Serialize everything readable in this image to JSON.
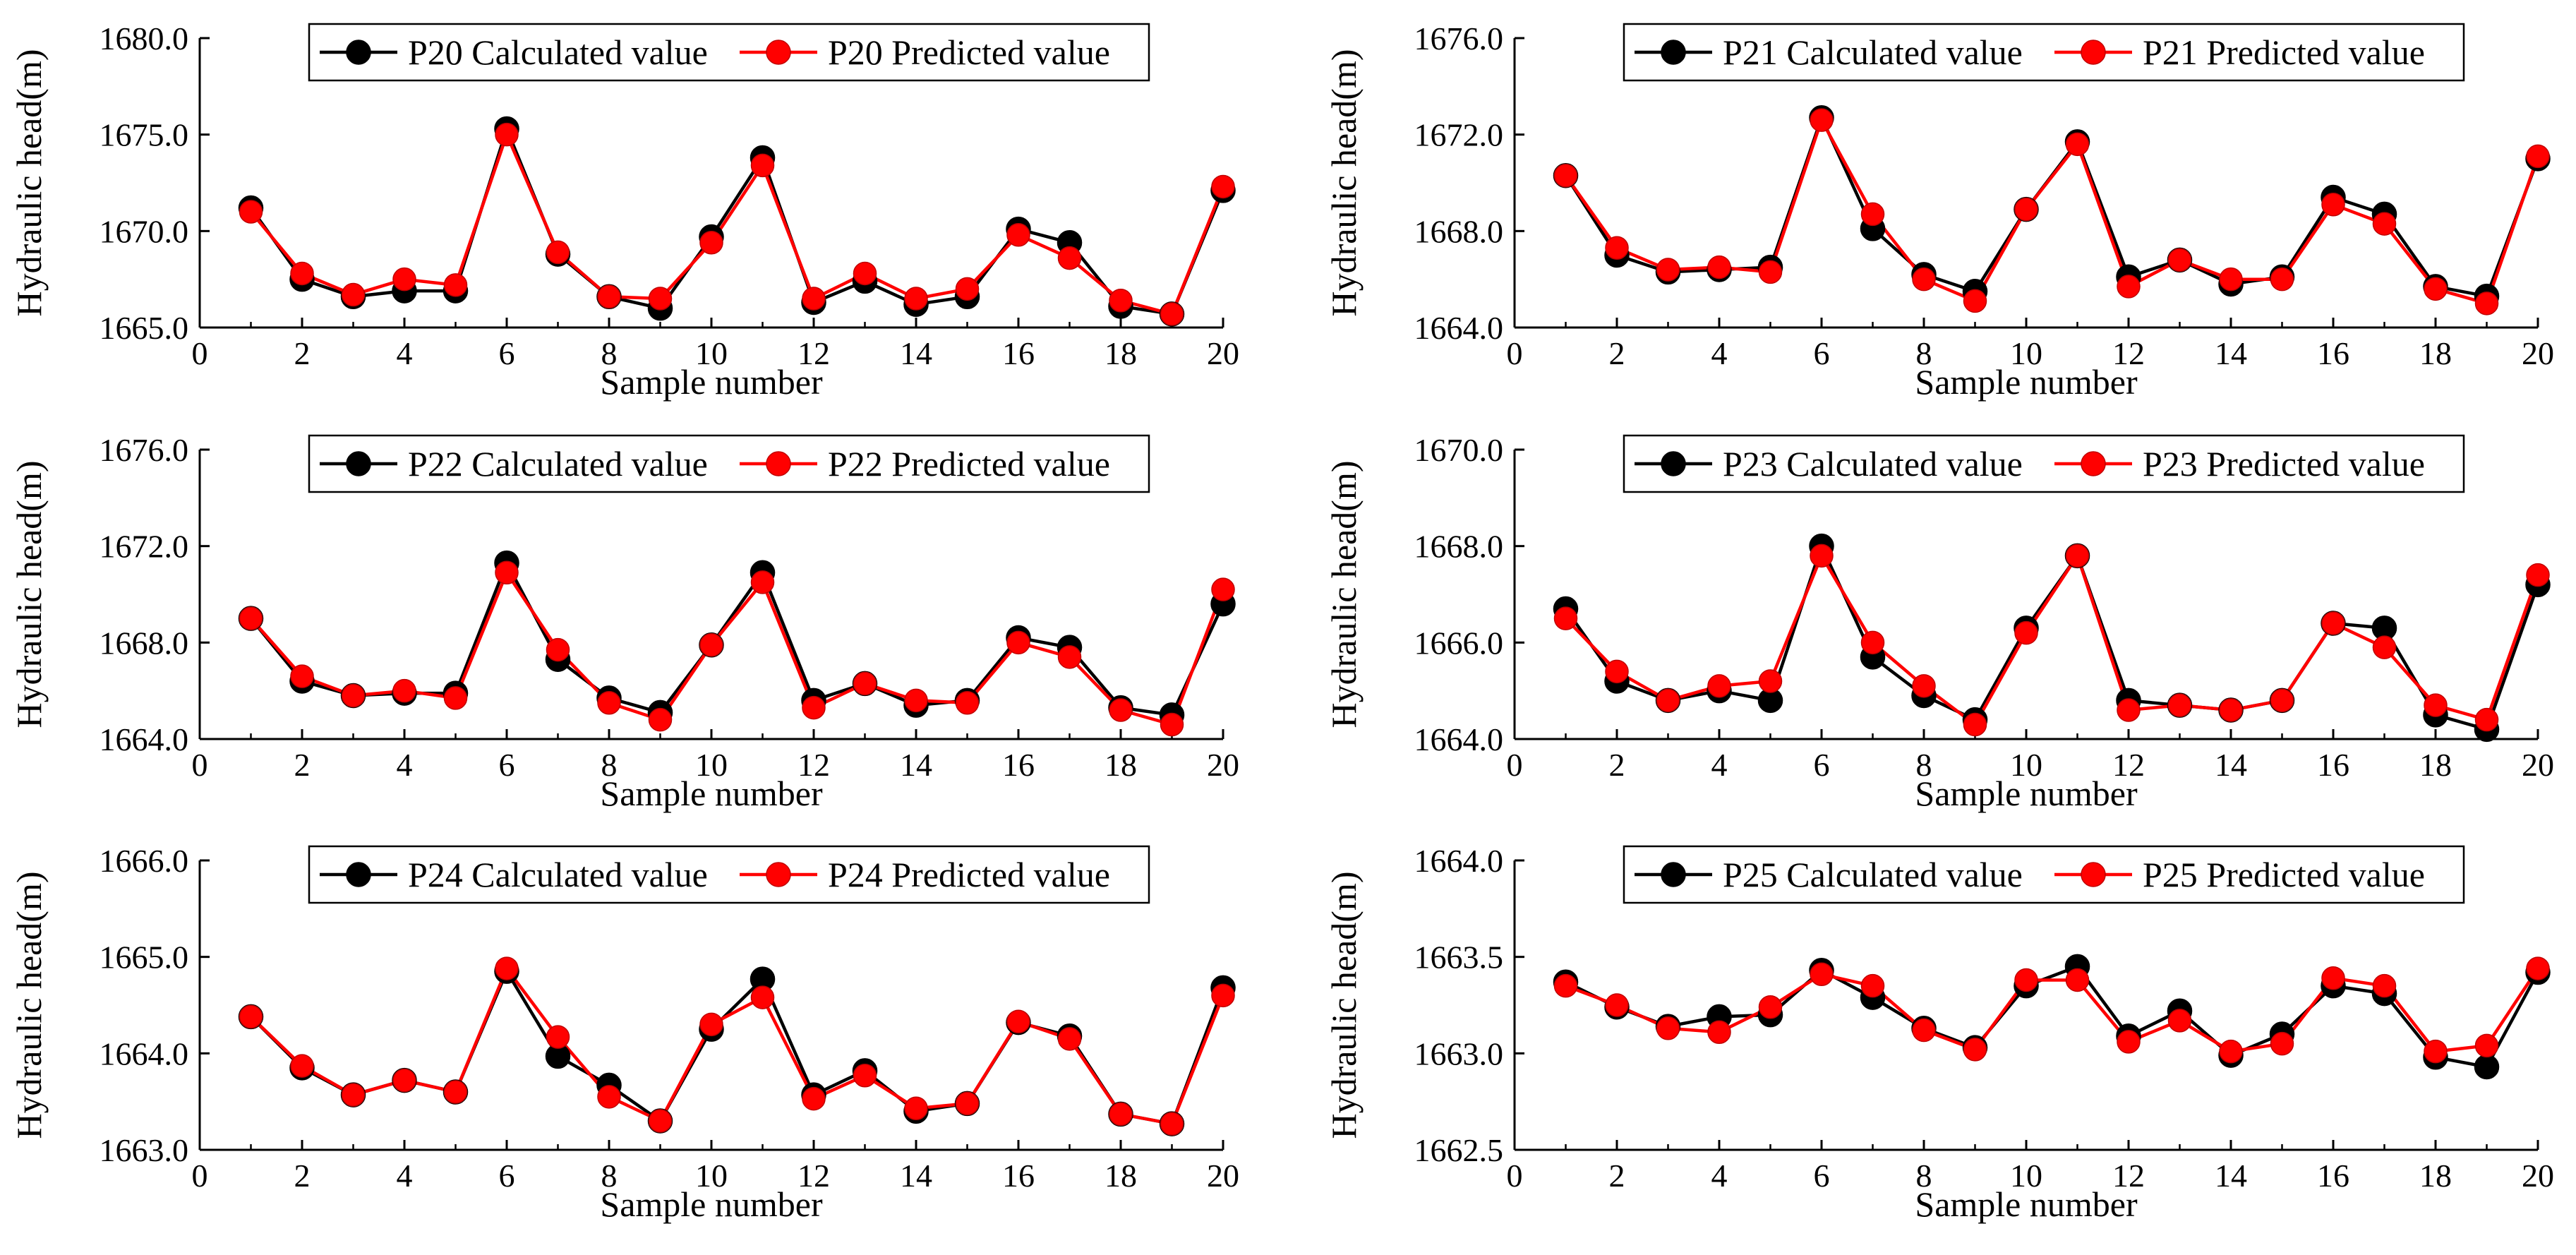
{
  "chart_data": [
    {
      "type": "line",
      "xlabel": "Sample number",
      "ylabel": "Hydraulic head(m)",
      "xlim": [
        0,
        20
      ],
      "ylim": [
        1665.0,
        1680.0
      ],
      "yticks": [
        "1665.0",
        "1670.0",
        "1675.0",
        "1680.0"
      ],
      "xticks": [
        "0",
        "2",
        "4",
        "6",
        "8",
        "10",
        "12",
        "14",
        "16",
        "18",
        "20"
      ],
      "x": [
        1,
        2,
        3,
        4,
        5,
        6,
        7,
        8,
        9,
        10,
        11,
        12,
        13,
        14,
        15,
        16,
        17,
        18,
        19,
        20
      ],
      "series": [
        {
          "name": "P20 Calculated value",
          "color": "#000000",
          "values": [
            1671.2,
            1667.5,
            1666.6,
            1666.9,
            1666.9,
            1675.3,
            1668.8,
            1666.6,
            1666.0,
            1669.7,
            1673.8,
            1666.3,
            1667.4,
            1666.2,
            1666.6,
            1670.1,
            1669.4,
            1666.1,
            1665.7,
            1672.1
          ]
        },
        {
          "name": "P20 Predicted value",
          "color": "#ff0000",
          "values": [
            1671.0,
            1667.8,
            1666.7,
            1667.5,
            1667.2,
            1675.0,
            1668.9,
            1666.6,
            1666.5,
            1669.4,
            1673.4,
            1666.5,
            1667.8,
            1666.5,
            1667.0,
            1669.8,
            1668.6,
            1666.4,
            1665.7,
            1672.3
          ]
        }
      ]
    },
    {
      "type": "line",
      "xlabel": "Sample number",
      "ylabel": "Hydraulic head(m)",
      "xlim": [
        0,
        20
      ],
      "ylim": [
        1664.0,
        1676.0
      ],
      "yticks": [
        "1664.0",
        "1668.0",
        "1672.0",
        "1676.0"
      ],
      "xticks": [
        "0",
        "2",
        "4",
        "6",
        "8",
        "10",
        "12",
        "14",
        "16",
        "18",
        "20"
      ],
      "x": [
        1,
        2,
        3,
        4,
        5,
        6,
        7,
        8,
        9,
        10,
        11,
        12,
        13,
        14,
        15,
        16,
        17,
        18,
        19,
        20
      ],
      "series": [
        {
          "name": "P21 Calculated value",
          "color": "#000000",
          "values": [
            1670.3,
            1667.0,
            1666.3,
            1666.4,
            1666.5,
            1672.7,
            1668.1,
            1666.2,
            1665.5,
            1668.9,
            1671.7,
            1666.1,
            1666.8,
            1665.8,
            1666.1,
            1669.4,
            1668.7,
            1665.7,
            1665.3,
            1671.0
          ]
        },
        {
          "name": "P21 Predicted value",
          "color": "#ff0000",
          "values": [
            1670.3,
            1667.3,
            1666.4,
            1666.5,
            1666.3,
            1672.6,
            1668.7,
            1666.0,
            1665.1,
            1668.9,
            1671.6,
            1665.7,
            1666.8,
            1666.0,
            1666.0,
            1669.1,
            1668.3,
            1665.6,
            1665.0,
            1671.1
          ]
        }
      ]
    },
    {
      "type": "line",
      "xlabel": "Sample number",
      "ylabel": "Hydraulic head(m)",
      "xlim": [
        0,
        20
      ],
      "ylim": [
        1664.0,
        1676.0
      ],
      "yticks": [
        "1664.0",
        "1668.0",
        "1672.0",
        "1676.0"
      ],
      "xticks": [
        "0",
        "2",
        "4",
        "6",
        "8",
        "10",
        "12",
        "14",
        "16",
        "18",
        "20"
      ],
      "x": [
        1,
        2,
        3,
        4,
        5,
        6,
        7,
        8,
        9,
        10,
        11,
        12,
        13,
        14,
        15,
        16,
        17,
        18,
        19,
        20
      ],
      "series": [
        {
          "name": "P22 Calculated value",
          "color": "#000000",
          "values": [
            1669.0,
            1666.4,
            1665.8,
            1665.9,
            1665.9,
            1671.3,
            1667.3,
            1665.7,
            1665.1,
            1667.9,
            1670.9,
            1665.6,
            1666.3,
            1665.4,
            1665.6,
            1668.2,
            1667.8,
            1665.3,
            1665.0,
            1669.6
          ]
        },
        {
          "name": "P22 Predicted value",
          "color": "#ff0000",
          "values": [
            1669.0,
            1666.6,
            1665.8,
            1666.0,
            1665.7,
            1670.9,
            1667.7,
            1665.5,
            1664.8,
            1667.9,
            1670.5,
            1665.3,
            1666.3,
            1665.6,
            1665.5,
            1668.0,
            1667.4,
            1665.2,
            1664.6,
            1670.2
          ]
        }
      ]
    },
    {
      "type": "line",
      "xlabel": "Sample number",
      "ylabel": "Hydraulic head(m)",
      "xlim": [
        0,
        20
      ],
      "ylim": [
        1664.0,
        1670.0
      ],
      "yticks": [
        "1664.0",
        "1666.0",
        "1668.0",
        "1670.0"
      ],
      "xticks": [
        "0",
        "2",
        "4",
        "6",
        "8",
        "10",
        "12",
        "14",
        "16",
        "18",
        "20"
      ],
      "x": [
        1,
        2,
        3,
        4,
        5,
        6,
        7,
        8,
        9,
        10,
        11,
        12,
        13,
        14,
        15,
        16,
        17,
        18,
        19,
        20
      ],
      "series": [
        {
          "name": "P23 Calculated value",
          "color": "#000000",
          "values": [
            1666.7,
            1665.2,
            1664.8,
            1665.0,
            1664.8,
            1668.0,
            1665.7,
            1664.9,
            1664.4,
            1666.3,
            1667.8,
            1664.8,
            1664.7,
            1664.6,
            1664.8,
            1666.4,
            1666.3,
            1664.5,
            1664.2,
            1667.2
          ]
        },
        {
          "name": "P23 Predicted value",
          "color": "#ff0000",
          "values": [
            1666.5,
            1665.4,
            1664.8,
            1665.1,
            1665.2,
            1667.8,
            1666.0,
            1665.1,
            1664.3,
            1666.2,
            1667.8,
            1664.6,
            1664.7,
            1664.6,
            1664.8,
            1666.4,
            1665.9,
            1664.7,
            1664.4,
            1667.4
          ]
        }
      ]
    },
    {
      "type": "line",
      "xlabel": "Sample number",
      "ylabel": "Hydraulic head(m)",
      "xlim": [
        0,
        20
      ],
      "ylim": [
        1663.0,
        1666.0
      ],
      "yticks": [
        "1663.0",
        "1664.0",
        "1665.0",
        "1666.0"
      ],
      "xticks": [
        "0",
        "2",
        "4",
        "6",
        "8",
        "10",
        "12",
        "14",
        "16",
        "18",
        "20"
      ],
      "x": [
        1,
        2,
        3,
        4,
        5,
        6,
        7,
        8,
        9,
        10,
        11,
        12,
        13,
        14,
        15,
        16,
        17,
        18,
        19,
        20
      ],
      "series": [
        {
          "name": "P24 Calculated value",
          "color": "#000000",
          "values": [
            1664.38,
            1663.85,
            1663.57,
            1663.72,
            1663.6,
            1664.85,
            1663.97,
            1663.67,
            1663.3,
            1664.25,
            1664.77,
            1663.57,
            1663.82,
            1663.4,
            1663.48,
            1664.32,
            1664.18,
            1663.37,
            1663.27,
            1664.68
          ]
        },
        {
          "name": "P24 Predicted value",
          "color": "#ff0000",
          "values": [
            1664.38,
            1663.87,
            1663.57,
            1663.72,
            1663.6,
            1664.88,
            1664.17,
            1663.55,
            1663.3,
            1664.3,
            1664.58,
            1663.53,
            1663.77,
            1663.43,
            1663.48,
            1664.33,
            1664.15,
            1663.37,
            1663.27,
            1664.6
          ]
        }
      ]
    },
    {
      "type": "line",
      "xlabel": "Sample number",
      "ylabel": "Hydraulic head(m)",
      "xlim": [
        0,
        20
      ],
      "ylim": [
        1662.5,
        1664.0
      ],
      "yticks": [
        "1662.5",
        "1663.0",
        "1663.5",
        "1664.0"
      ],
      "xticks": [
        "0",
        "2",
        "4",
        "6",
        "8",
        "10",
        "12",
        "14",
        "16",
        "18",
        "20"
      ],
      "x": [
        1,
        2,
        3,
        4,
        5,
        6,
        7,
        8,
        9,
        10,
        11,
        12,
        13,
        14,
        15,
        16,
        17,
        18,
        19,
        20
      ],
      "series": [
        {
          "name": "P25 Calculated value",
          "color": "#000000",
          "values": [
            1663.37,
            1663.24,
            1663.14,
            1663.19,
            1663.2,
            1663.43,
            1663.29,
            1663.13,
            1663.03,
            1663.35,
            1663.45,
            1663.09,
            1663.22,
            1662.99,
            1663.1,
            1663.35,
            1663.31,
            1662.98,
            1662.93,
            1663.42
          ]
        },
        {
          "name": "P25 Predicted value",
          "color": "#ff0000",
          "values": [
            1663.35,
            1663.25,
            1663.13,
            1663.11,
            1663.24,
            1663.41,
            1663.35,
            1663.12,
            1663.02,
            1663.38,
            1663.38,
            1663.06,
            1663.17,
            1663.01,
            1663.05,
            1663.39,
            1663.35,
            1663.01,
            1663.04,
            1663.44
          ]
        }
      ]
    }
  ]
}
